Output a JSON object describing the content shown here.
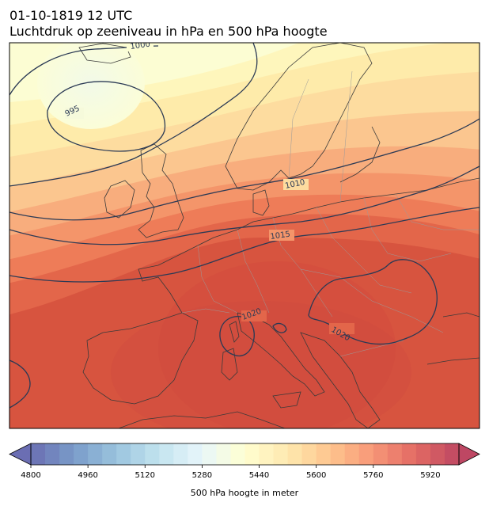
{
  "title_line1": "01-10-1819 12 UTC",
  "title_line2": "Luchtdruk op zeeniveau in hPa en 500 hPa hoogte",
  "isobar_labels": [
    "1000",
    "995",
    "1010",
    "1015",
    "1020",
    "1020"
  ],
  "colorbar": {
    "label": "500 hPa hoogte in meter",
    "min": 4800,
    "max": 6000,
    "step": 40,
    "extend": "both",
    "ticks": [
      4800,
      4960,
      5120,
      5280,
      5440,
      5600,
      5760,
      5920
    ],
    "colormap": "RdYlBu_r"
  },
  "colors": {
    "isobar": "#2b3a55",
    "coastline": "#3a3a3a",
    "border": "#999999"
  }
}
